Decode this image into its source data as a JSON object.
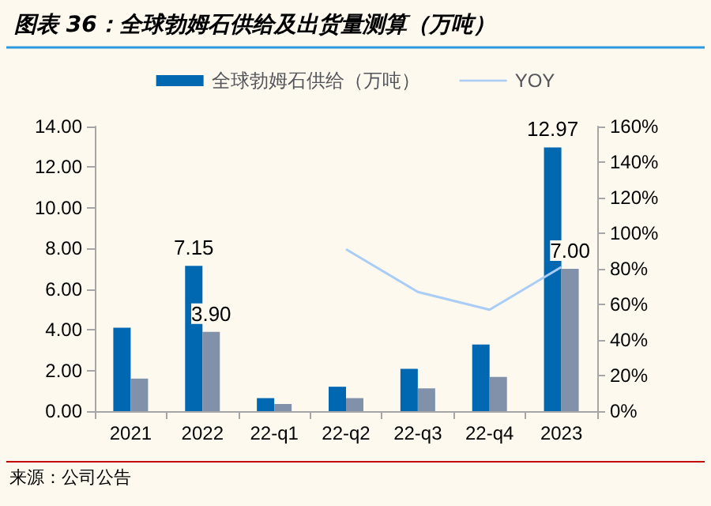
{
  "chart_data": {
    "type": "bar",
    "title": "图表 36：全球勃姆石供给及出货量测算（万吨）",
    "categories": [
      "2021",
      "2022",
      "22-q1",
      "22-q2",
      "22-q3",
      "22-q4",
      "2023"
    ],
    "series": [
      {
        "name": "全球勃姆石供给（万吨）",
        "color": "#0067b1",
        "values": [
          4.1,
          7.15,
          0.64,
          1.2,
          2.08,
          3.28,
          12.97
        ],
        "value_labels": [
          null,
          "7.15",
          null,
          null,
          null,
          null,
          "12.97"
        ]
      },
      {
        "color": "#8091a9",
        "values": [
          1.6,
          3.9,
          0.35,
          0.64,
          1.12,
          1.68,
          7.0
        ],
        "value_labels": [
          null,
          "3.90",
          null,
          null,
          null,
          null,
          "7.00"
        ]
      },
      {
        "name": "YOY",
        "type": "line",
        "axis": "y2",
        "color": "#a9cdf5",
        "values": [
          null,
          null,
          null,
          91,
          67,
          57,
          81
        ]
      }
    ],
    "ylim": [
      0,
      14
    ],
    "yticks": [
      {
        "value": 0,
        "label": "0.00"
      },
      {
        "value": 2,
        "label": "2.00"
      },
      {
        "value": 4,
        "label": "4.00"
      },
      {
        "value": 6,
        "label": "6.00"
      },
      {
        "value": 8,
        "label": "8.00"
      },
      {
        "value": 10,
        "label": "10.00"
      },
      {
        "value": 12,
        "label": "12.00"
      },
      {
        "value": 14,
        "label": "14.00"
      }
    ],
    "y2lim": [
      0,
      160
    ],
    "y2ticks": [
      {
        "value": 0,
        "label": "0%"
      },
      {
        "value": 20,
        "label": "20%"
      },
      {
        "value": 40,
        "label": "40%"
      },
      {
        "value": 60,
        "label": "60%"
      },
      {
        "value": 80,
        "label": "80%"
      },
      {
        "value": 100,
        "label": "100%"
      },
      {
        "value": 120,
        "label": "120%"
      },
      {
        "value": 140,
        "label": "140%"
      },
      {
        "value": 160,
        "label": "160%"
      }
    ],
    "grid": false,
    "legend": "top",
    "marker": "none",
    "annotations": [
      "来源：公司公告"
    ]
  }
}
